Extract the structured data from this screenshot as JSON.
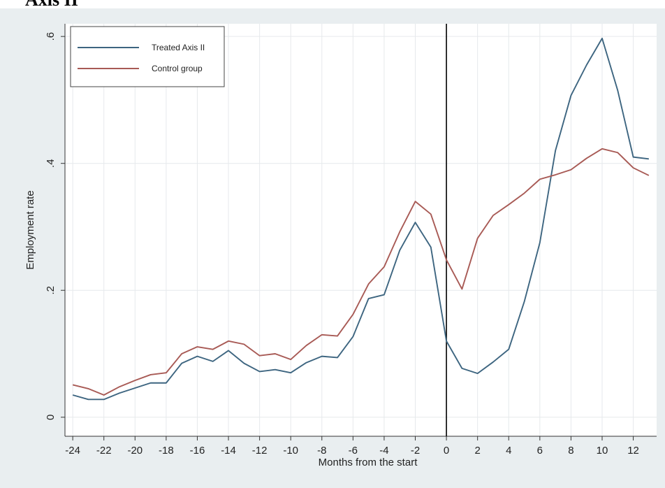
{
  "page": {
    "heading": "Axis II"
  },
  "colors": {
    "outer_background": "#e9eef0",
    "plot_background": "#ffffff",
    "grid": "#e6e9ec",
    "treated": "#3d6580",
    "control": "#a85a55",
    "event_line": "#000000"
  },
  "chart_data": {
    "type": "line",
    "xlabel": "Months from the start",
    "ylabel": "Employment rate",
    "xlim": [
      -24.5,
      13.5
    ],
    "ylim": [
      -0.03,
      0.62
    ],
    "x_ticks": [
      -24,
      -22,
      -20,
      -18,
      -16,
      -14,
      -12,
      -10,
      -8,
      -6,
      -4,
      -2,
      0,
      2,
      4,
      6,
      8,
      10,
      12
    ],
    "x_tick_labels": [
      "-24",
      "-22",
      "-20",
      "-18",
      "-16",
      "-14",
      "-12",
      "-10",
      "-8",
      "-6",
      "-4",
      "-2",
      "0",
      "2",
      "4",
      "6",
      "8",
      "10",
      "12"
    ],
    "y_ticks": [
      0,
      0.2,
      0.4,
      0.6
    ],
    "y_tick_labels": [
      "0",
      ".2",
      ".4",
      ".6"
    ],
    "vertical_line_x": 0,
    "grid": true,
    "legend_position": "top-left",
    "x": [
      -24,
      -23,
      -22,
      -21,
      -20,
      -19,
      -18,
      -17,
      -16,
      -15,
      -14,
      -13,
      -12,
      -11,
      -10,
      -9,
      -8,
      -7,
      -6,
      -5,
      -4,
      -3,
      -2,
      -1,
      0,
      1,
      2,
      3,
      4,
      5,
      6,
      7,
      8,
      9,
      10,
      11,
      12,
      13
    ],
    "series": [
      {
        "name": "Treated Axis II",
        "color": "#3d6580",
        "values": [
          0.035,
          0.028,
          0.028,
          0.038,
          0.046,
          0.054,
          0.054,
          0.085,
          0.096,
          0.088,
          0.105,
          0.085,
          0.072,
          0.075,
          0.07,
          0.086,
          0.096,
          0.094,
          0.127,
          0.187,
          0.193,
          0.263,
          0.307,
          0.268,
          0.12,
          0.077,
          0.069,
          0.087,
          0.107,
          0.182,
          0.275,
          0.42,
          0.507,
          0.555,
          0.597,
          0.515,
          0.41,
          0.407
        ]
      },
      {
        "name": "Control group",
        "color": "#a85a55",
        "values": [
          0.051,
          0.045,
          0.035,
          0.048,
          0.058,
          0.067,
          0.07,
          0.1,
          0.111,
          0.107,
          0.12,
          0.115,
          0.097,
          0.1,
          0.091,
          0.113,
          0.13,
          0.128,
          0.162,
          0.21,
          0.237,
          0.292,
          0.34,
          0.32,
          0.248,
          0.202,
          0.282,
          0.318,
          0.335,
          0.353,
          0.375,
          0.382,
          0.39,
          0.408,
          0.423,
          0.417,
          0.393,
          0.381
        ]
      }
    ]
  }
}
